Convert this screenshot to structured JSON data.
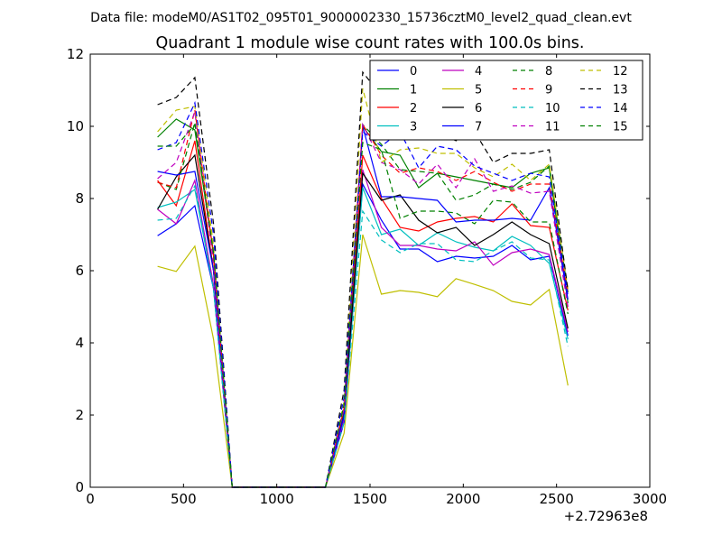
{
  "chart_data": {
    "type": "line",
    "suptitle": "Data file: modeM0/AS1T02_095T01_9000002330_15736cztM0_level2_quad_clean.evt",
    "title": "Quadrant 1 module wise count rates with 100.0s bins.",
    "xlabel": "",
    "ylabel": "",
    "x_offset_label": "+2.72963e8",
    "xlim": [
      0,
      3000
    ],
    "ylim": [
      0,
      12
    ],
    "xticks": [
      0,
      500,
      1000,
      1500,
      2000,
      2500,
      3000
    ],
    "yticks": [
      0,
      2,
      4,
      6,
      8,
      10,
      12
    ],
    "grid": false,
    "legend_location": "upper right",
    "legend_columns": 4,
    "x": [
      361,
      461,
      561,
      661,
      761,
      861,
      961,
      1061,
      1161,
      1261,
      1361,
      1461,
      1561,
      1661,
      1761,
      1861,
      1961,
      2061,
      2161,
      2261,
      2361,
      2461,
      2561
    ],
    "series": [
      {
        "name": "0",
        "color": "#0000ff",
        "dash": "solid",
        "values": [
          6.97,
          7.3,
          7.8,
          5.5,
          0,
          0,
          0,
          0,
          0,
          0,
          1.8,
          8.4,
          7.4,
          6.6,
          6.6,
          6.25,
          6.4,
          6.35,
          6.4,
          6.7,
          6.3,
          6.4,
          4.2
        ]
      },
      {
        "name": "1",
        "color": "#008000",
        "dash": "solid",
        "values": [
          9.7,
          10.2,
          9.9,
          6.5,
          0,
          0,
          0,
          0,
          0,
          0,
          2.1,
          10.0,
          9.3,
          9.2,
          8.3,
          8.7,
          8.6,
          8.5,
          8.4,
          8.3,
          8.7,
          8.85,
          5.1
        ]
      },
      {
        "name": "2",
        "color": "#ff0000",
        "dash": "solid",
        "values": [
          8.5,
          7.8,
          9.6,
          6.0,
          0,
          0,
          0,
          0,
          0,
          0,
          2.0,
          9.2,
          8.0,
          7.2,
          7.1,
          7.35,
          7.45,
          7.5,
          7.35,
          7.85,
          7.25,
          7.2,
          4.9
        ]
      },
      {
        "name": "3",
        "color": "#00bfbf",
        "dash": "solid",
        "values": [
          7.75,
          7.9,
          8.25,
          5.5,
          0,
          0,
          0,
          0,
          0,
          0,
          1.9,
          8.3,
          7.0,
          7.15,
          6.7,
          7.05,
          6.8,
          6.65,
          6.55,
          6.95,
          6.7,
          6.2,
          4.1
        ]
      },
      {
        "name": "4",
        "color": "#bf00bf",
        "dash": "solid",
        "values": [
          7.7,
          7.3,
          8.5,
          5.6,
          0,
          0,
          0,
          0,
          0,
          0,
          1.9,
          8.8,
          7.2,
          6.7,
          6.7,
          6.6,
          6.55,
          6.8,
          6.15,
          6.5,
          6.6,
          6.45,
          4.3
        ]
      },
      {
        "name": "5",
        "color": "#bfbf00",
        "dash": "solid",
        "values": [
          6.12,
          5.98,
          6.68,
          4.1,
          0,
          0,
          0,
          0,
          0,
          0,
          1.5,
          7.0,
          5.35,
          5.45,
          5.4,
          5.28,
          5.78,
          5.62,
          5.45,
          5.15,
          5.05,
          5.48,
          2.82
        ]
      },
      {
        "name": "6",
        "color": "#000000",
        "dash": "solid",
        "values": [
          7.7,
          8.6,
          9.2,
          6.0,
          0,
          0,
          0,
          0,
          0,
          0,
          2.0,
          8.7,
          7.95,
          8.1,
          7.4,
          7.05,
          7.2,
          6.7,
          7.0,
          7.35,
          7.0,
          6.75,
          4.4
        ]
      },
      {
        "name": "7",
        "color": "#0000ff",
        "dash": "solid",
        "values": [
          8.75,
          8.65,
          8.75,
          6.0,
          0,
          0,
          0,
          0,
          0,
          0,
          2.0,
          10.0,
          8.05,
          8.05,
          8.0,
          7.95,
          7.35,
          7.4,
          7.4,
          7.45,
          7.4,
          8.3,
          5.2
        ]
      },
      {
        "name": "8",
        "color": "#008000",
        "dash": "dashed",
        "values": [
          8.45,
          8.25,
          10.1,
          6.3,
          0,
          0,
          0,
          0,
          0,
          0,
          2.3,
          10.05,
          9.5,
          8.8,
          8.75,
          8.7,
          7.95,
          8.1,
          8.4,
          8.25,
          8.45,
          8.9,
          5.4
        ]
      },
      {
        "name": "9",
        "color": "#ff0000",
        "dash": "dashed",
        "values": [
          8.45,
          8.3,
          10.45,
          6.4,
          0,
          0,
          0,
          0,
          0,
          0,
          2.2,
          10.05,
          9.2,
          8.7,
          8.85,
          8.75,
          8.5,
          8.75,
          8.45,
          8.2,
          8.4,
          8.4,
          5.35
        ]
      },
      {
        "name": "10",
        "color": "#00bfbf",
        "dash": "dashed",
        "values": [
          7.4,
          7.45,
          8.35,
          5.5,
          0,
          0,
          0,
          0,
          0,
          0,
          1.8,
          7.65,
          6.85,
          6.5,
          6.75,
          6.75,
          6.3,
          6.25,
          6.55,
          6.8,
          6.35,
          6.3,
          3.9
        ]
      },
      {
        "name": "11",
        "color": "#bf00bf",
        "dash": "dashed",
        "values": [
          8.55,
          9.0,
          10.4,
          6.2,
          0,
          0,
          0,
          0,
          0,
          0,
          2.2,
          10.05,
          9.0,
          8.8,
          8.4,
          8.95,
          8.3,
          9.1,
          8.2,
          8.35,
          8.15,
          8.2,
          5.0
        ]
      },
      {
        "name": "12",
        "color": "#bfbf00",
        "dash": "dashed",
        "values": [
          9.85,
          10.45,
          10.55,
          6.7,
          0,
          0,
          0,
          0,
          0,
          0,
          2.4,
          11.05,
          9.0,
          9.35,
          9.4,
          9.25,
          9.25,
          8.85,
          8.6,
          8.95,
          8.5,
          8.95,
          5.5
        ]
      },
      {
        "name": "13",
        "color": "#000000",
        "dash": "dashed",
        "values": [
          10.6,
          10.8,
          11.35,
          7.3,
          0,
          0,
          0,
          0,
          0,
          0,
          2.7,
          11.5,
          10.85,
          10.05,
          10.2,
          9.85,
          9.6,
          9.85,
          9.0,
          9.25,
          9.25,
          9.35,
          5.45
        ]
      },
      {
        "name": "14",
        "color": "#0000ff",
        "dash": "dashed",
        "values": [
          9.35,
          9.55,
          10.65,
          7.0,
          0,
          0,
          0,
          0,
          0,
          0,
          2.5,
          9.85,
          9.45,
          9.85,
          8.85,
          9.45,
          9.35,
          8.9,
          8.7,
          8.5,
          8.7,
          8.6,
          5.3
        ]
      },
      {
        "name": "15",
        "color": "#008000",
        "dash": "dashed",
        "values": [
          9.45,
          9.45,
          10.05,
          6.5,
          0,
          0,
          0,
          0,
          0,
          0,
          2.3,
          9.55,
          9.35,
          7.45,
          7.65,
          7.65,
          7.6,
          7.3,
          7.95,
          7.9,
          7.35,
          7.35,
          4.8
        ]
      }
    ]
  }
}
